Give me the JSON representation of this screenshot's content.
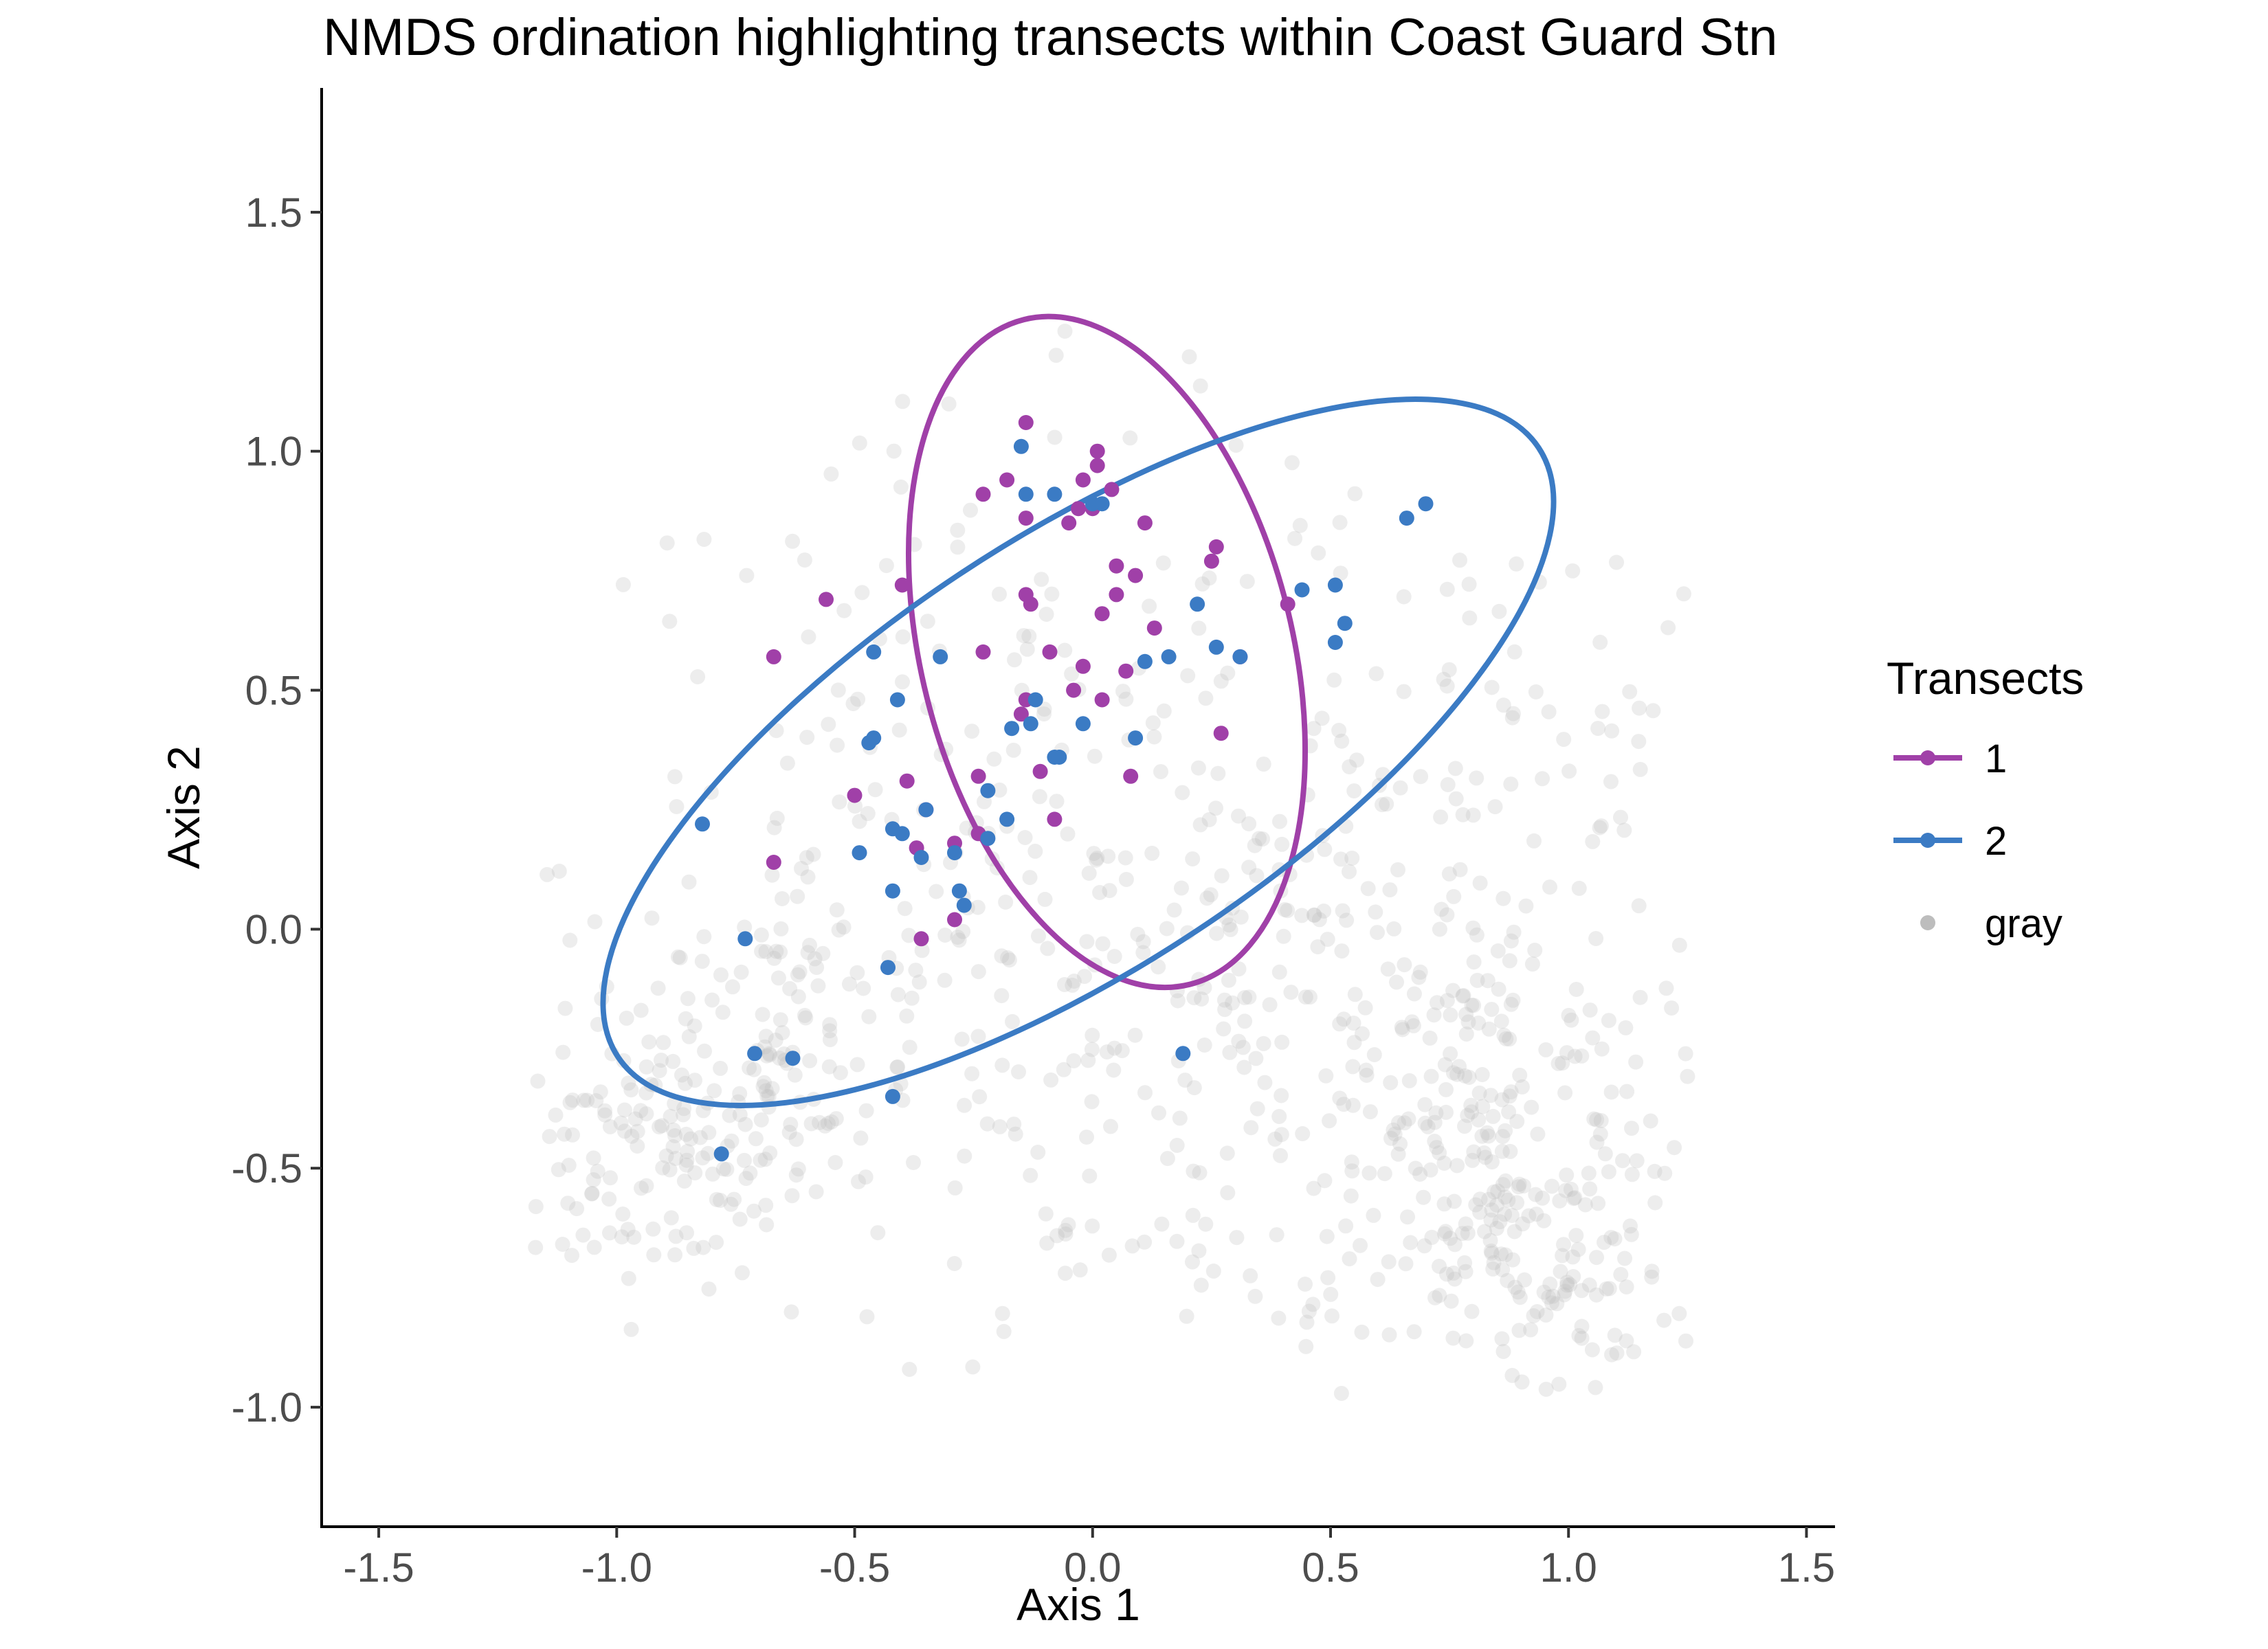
{
  "chart_data": {
    "type": "scatter",
    "title": "NMDS ordination highlighting transects within Coast Guard Stn",
    "xlabel": "Axis 1",
    "ylabel": "Axis 2",
    "xlim": [
      -1.62,
      1.56
    ],
    "ylim": [
      -1.25,
      1.76
    ],
    "xticks": [
      -1.5,
      -1.0,
      -0.5,
      0.0,
      0.5,
      1.0,
      1.5
    ],
    "xtick_labels": [
      "-1.5",
      "-1.0",
      "-0.5",
      "0.0",
      "0.5",
      "1.0",
      "1.5"
    ],
    "yticks": [
      -1.0,
      -0.5,
      0.0,
      0.5,
      1.0,
      1.5
    ],
    "ytick_labels": [
      "-1.0",
      "-0.5",
      "0.0",
      "0.5",
      "1.0",
      "1.5"
    ],
    "grid": false,
    "legend": {
      "title": "Transects",
      "position": "right",
      "entries": [
        {
          "label": "1",
          "color": "#a040a8"
        },
        {
          "label": "2",
          "color": "#3b7bc4"
        },
        {
          "label": "gray",
          "color": "#bdbdbd"
        }
      ]
    },
    "series": [
      {
        "name": "1",
        "color": "#a040a8",
        "points": [
          [
            -0.67,
            0.57
          ],
          [
            -0.56,
            0.69
          ],
          [
            -0.67,
            0.14
          ],
          [
            -0.5,
            0.28
          ],
          [
            -0.4,
            0.72
          ],
          [
            -0.39,
            0.31
          ],
          [
            -0.37,
            0.17
          ],
          [
            -0.36,
            -0.02
          ],
          [
            -0.35,
            0.25
          ],
          [
            -0.29,
            0.18
          ],
          [
            -0.29,
            0.02
          ],
          [
            -0.23,
            0.91
          ],
          [
            -0.23,
            0.58
          ],
          [
            -0.24,
            0.32
          ],
          [
            -0.24,
            0.2
          ],
          [
            -0.18,
            0.94
          ],
          [
            -0.14,
            1.06
          ],
          [
            -0.14,
            0.86
          ],
          [
            -0.14,
            0.7
          ],
          [
            -0.13,
            0.68
          ],
          [
            -0.14,
            0.48
          ],
          [
            -0.15,
            0.45
          ],
          [
            -0.09,
            0.58
          ],
          [
            -0.08,
            0.23
          ],
          [
            -0.05,
            0.85
          ],
          [
            -0.04,
            0.5
          ],
          [
            -0.03,
            0.88
          ],
          [
            -0.02,
            0.94
          ],
          [
            -0.02,
            0.55
          ],
          [
            0.0,
            0.88
          ],
          [
            0.01,
            1.0
          ],
          [
            0.01,
            0.97
          ],
          [
            0.02,
            0.66
          ],
          [
            0.02,
            0.48
          ],
          [
            0.04,
            0.92
          ],
          [
            0.05,
            0.76
          ],
          [
            0.05,
            0.7
          ],
          [
            0.07,
            0.54
          ],
          [
            0.08,
            0.32
          ],
          [
            0.09,
            0.74
          ],
          [
            0.11,
            0.85
          ],
          [
            0.13,
            0.63
          ],
          [
            0.25,
            0.77
          ],
          [
            0.26,
            0.8
          ],
          [
            0.27,
            0.41
          ],
          [
            0.31,
            0.57
          ],
          [
            0.41,
            0.68
          ],
          [
            -0.11,
            0.33
          ]
        ]
      },
      {
        "name": "2",
        "color": "#3b7bc4",
        "points": [
          [
            -0.82,
            0.22
          ],
          [
            -0.73,
            -0.02
          ],
          [
            -0.71,
            -0.26
          ],
          [
            -0.63,
            -0.27
          ],
          [
            -0.78,
            -0.47
          ],
          [
            -0.49,
            0.16
          ],
          [
            -0.47,
            0.39
          ],
          [
            -0.46,
            0.4
          ],
          [
            -0.46,
            0.58
          ],
          [
            -0.42,
            0.08
          ],
          [
            -0.42,
            0.21
          ],
          [
            -0.4,
            0.2
          ],
          [
            -0.41,
            0.48
          ],
          [
            -0.42,
            -0.35
          ],
          [
            -0.43,
            -0.08
          ],
          [
            -0.35,
            0.25
          ],
          [
            -0.36,
            0.15
          ],
          [
            -0.32,
            0.57
          ],
          [
            -0.29,
            0.16
          ],
          [
            -0.28,
            0.08
          ],
          [
            -0.27,
            0.05
          ],
          [
            -0.22,
            0.29
          ],
          [
            -0.22,
            0.19
          ],
          [
            -0.18,
            0.23
          ],
          [
            -0.17,
            0.42
          ],
          [
            -0.15,
            1.01
          ],
          [
            -0.14,
            0.91
          ],
          [
            -0.13,
            0.43
          ],
          [
            -0.12,
            0.48
          ],
          [
            -0.08,
            0.91
          ],
          [
            -0.08,
            0.36
          ],
          [
            -0.07,
            0.36
          ],
          [
            -0.02,
            0.43
          ],
          [
            0.0,
            0.89
          ],
          [
            0.02,
            0.89
          ],
          [
            0.09,
            0.4
          ],
          [
            0.11,
            0.56
          ],
          [
            0.16,
            0.57
          ],
          [
            0.19,
            -0.26
          ],
          [
            0.22,
            0.68
          ],
          [
            0.26,
            0.59
          ],
          [
            0.31,
            0.57
          ],
          [
            0.44,
            0.71
          ],
          [
            0.51,
            0.72
          ],
          [
            0.51,
            0.6
          ],
          [
            0.53,
            0.64
          ],
          [
            0.66,
            0.86
          ],
          [
            0.7,
            0.89
          ]
        ]
      }
    ],
    "ellipses": [
      {
        "series": "1",
        "center": [
          0.03,
          0.58
        ],
        "rx": 0.39,
        "ry": 0.72,
        "rotation_deg": 14
      },
      {
        "series": "2",
        "center": [
          -0.03,
          0.37
        ],
        "rx": 1.16,
        "ry": 0.45,
        "rotation_deg": 33.5
      }
    ],
    "background_clusters": [
      {
        "cx": -0.92,
        "cy": -0.47,
        "sx": 0.16,
        "sy": 0.14,
        "n": 130
      },
      {
        "cx": -0.65,
        "cy": -0.22,
        "sx": 0.22,
        "sy": 0.2,
        "n": 110
      },
      {
        "cx": -0.2,
        "cy": 0.15,
        "sx": 0.45,
        "sy": 0.45,
        "n": 230
      },
      {
        "cx": 0.28,
        "cy": -0.3,
        "sx": 0.4,
        "sy": 0.3,
        "n": 140
      },
      {
        "cx": 0.78,
        "cy": -0.4,
        "sx": 0.23,
        "sy": 0.25,
        "n": 200
      },
      {
        "cx": 0.95,
        "cy": -0.72,
        "sx": 0.13,
        "sy": 0.15,
        "n": 90
      },
      {
        "cx": 0.7,
        "cy": 0.1,
        "sx": 0.4,
        "sy": 0.4,
        "n": 110
      },
      {
        "cx": 0.95,
        "cy": 0.35,
        "sx": 0.25,
        "sy": 0.25,
        "n": 40
      }
    ]
  }
}
